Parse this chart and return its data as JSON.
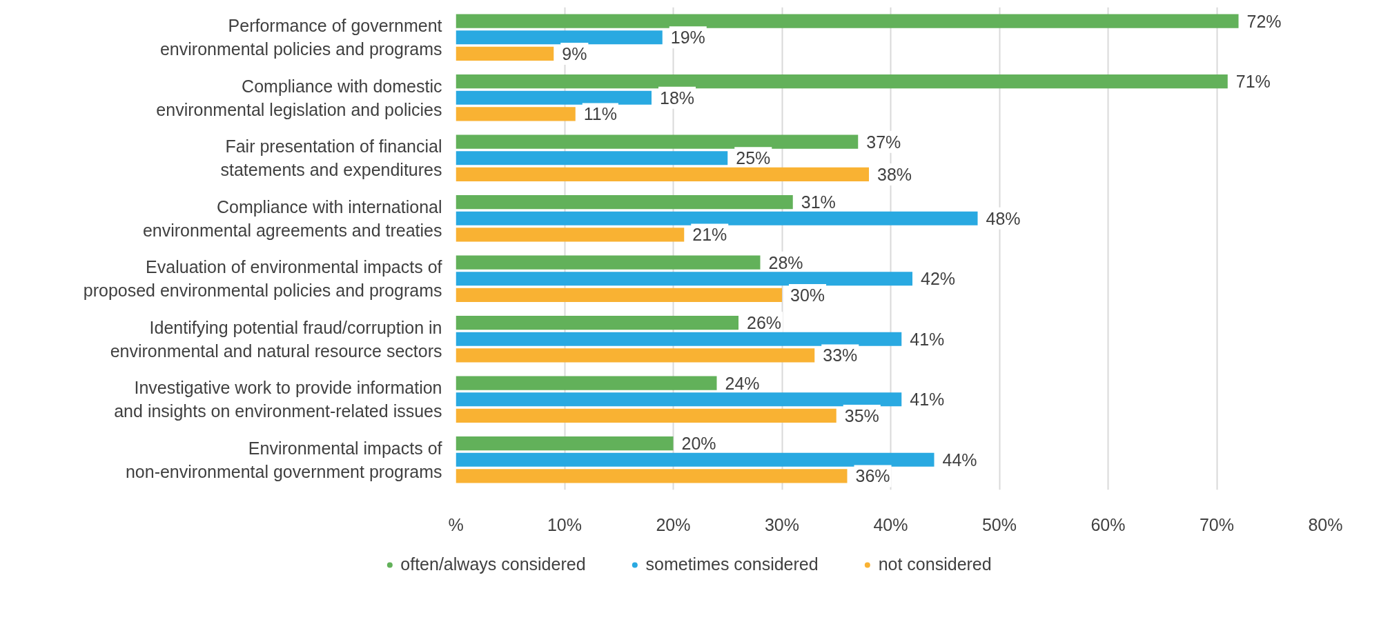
{
  "chart_data": {
    "type": "bar",
    "orientation": "horizontal",
    "categories": [
      "Performance of government\nenvironmental policies and programs",
      "Compliance with domestic\nenvironmental legislation and policies",
      "Fair presentation of financial\nstatements and expenditures",
      "Compliance with international\nenvironmental agreements and treaties",
      "Evaluation of environmental impacts of\nproposed environmental policies and programs",
      "Identifying potential fraud/corruption in\nenvironmental and natural resource sectors",
      "Investigative work to provide information\nand insights on environment-related issues",
      "Environmental impacts of\nnon-environmental government programs"
    ],
    "series": [
      {
        "name": "often/always considered",
        "color": "#62b15a",
        "values": [
          72,
          71,
          37,
          31,
          28,
          26,
          24,
          20
        ],
        "value_labels": [
          "72%",
          "71%",
          "37%",
          "31%",
          "28%",
          "26%",
          "24%",
          "20%"
        ]
      },
      {
        "name": "sometimes considered",
        "color": "#29a9e1",
        "values": [
          19,
          18,
          25,
          48,
          42,
          41,
          41,
          44
        ],
        "value_labels": [
          "19%",
          "18%",
          "25%",
          "48%",
          "42%",
          "41%",
          "41%",
          "44%"
        ]
      },
      {
        "name": "not considered",
        "color": "#f9b233",
        "values": [
          9,
          11,
          38,
          21,
          30,
          33,
          35,
          36
        ],
        "value_labels": [
          "9%",
          "11%",
          "38%",
          "21%",
          "30%",
          "33%",
          "35%",
          "36%"
        ]
      }
    ],
    "xlim": [
      0,
      80
    ],
    "xticks": [
      {
        "value": 0,
        "label": "%"
      },
      {
        "value": 10,
        "label": "10%"
      },
      {
        "value": 20,
        "label": "20%"
      },
      {
        "value": 30,
        "label": "30%"
      },
      {
        "value": 40,
        "label": "40%"
      },
      {
        "value": 50,
        "label": "50%"
      },
      {
        "value": 60,
        "label": "60%"
      },
      {
        "value": 70,
        "label": "70%"
      },
      {
        "value": 80,
        "label": "80%"
      }
    ],
    "grid": "x",
    "legend": "bottom"
  }
}
